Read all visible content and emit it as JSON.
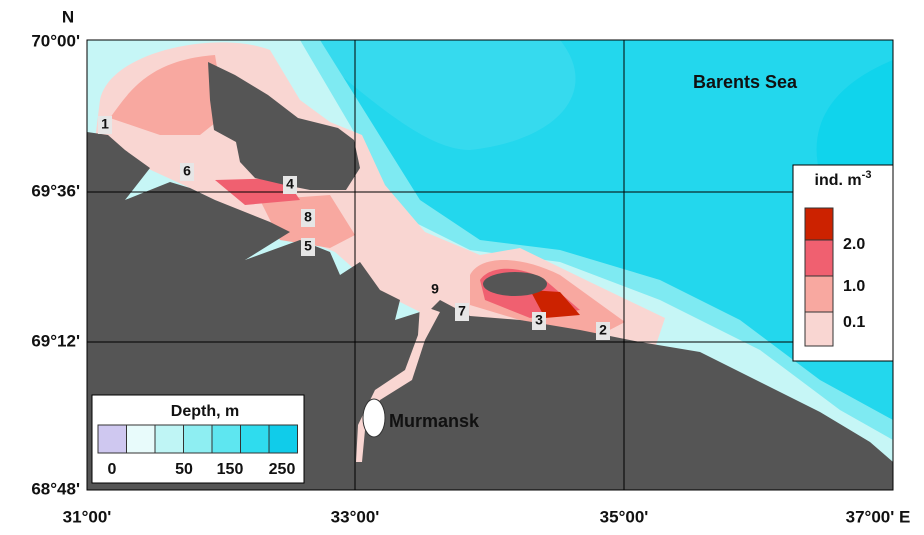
{
  "map": {
    "north_label": "N",
    "lat_labels": [
      "70°00'",
      "69°36'",
      "69°12'",
      "68°48'"
    ],
    "lon_labels": [
      "31°00'",
      "33°00'",
      "35°00'",
      "37°00' E"
    ],
    "sea_label": "Barents Sea",
    "city_label": "Murmansk",
    "stations": [
      "1",
      "2",
      "3",
      "4",
      "5",
      "6",
      "7",
      "8",
      "9"
    ],
    "abundance_legend": {
      "title": "ind. m",
      "title_exponent": "-3",
      "labels": [
        "2.0",
        "1.0",
        "0.1"
      ]
    },
    "depth_legend": {
      "title": "Depth, m",
      "labels": [
        "0",
        "50",
        "150",
        "250"
      ]
    }
  }
}
